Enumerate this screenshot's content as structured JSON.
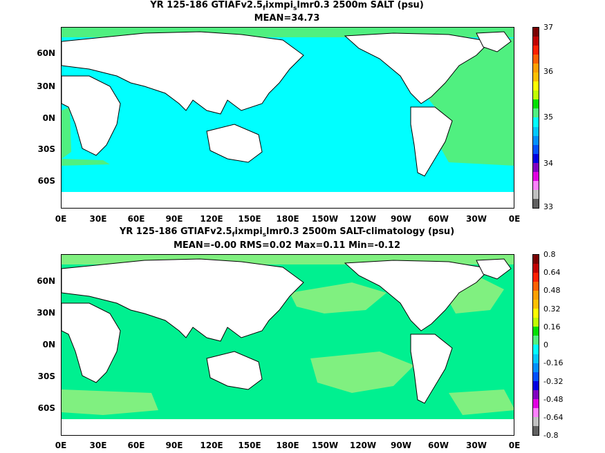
{
  "top": {
    "title_line1_pre": "YR 125-186 GTIAFv2.5",
    "title_sub1": "f",
    "title_mid": "ixmpi",
    "title_sub2": "s",
    "title_post": "lmr0.3 2500m SALT (psu)",
    "title_line2": "MEAN=34.73",
    "colorbar_labels": [
      "37",
      "36",
      "35",
      "34",
      "33"
    ],
    "colors": [
      "#7a0000",
      "#c00000",
      "#ff2000",
      "#ff6000",
      "#ffa000",
      "#ffc000",
      "#ffff00",
      "#c0ff00",
      "#00e000",
      "#50f080",
      "#00ffff",
      "#00c8ff",
      "#0090ff",
      "#0050ff",
      "#0000e0",
      "#8000c0",
      "#e000e0",
      "#ff80ff",
      "#c0c0c0",
      "#606060"
    ],
    "ocean_color": "#00ffff",
    "atlantic_color": "#50f080"
  },
  "bottom": {
    "title_line1_pre": "YR 125-186 GTIAFv2.5",
    "title_sub1": "f",
    "title_mid": "ixmpi",
    "title_sub2": "s",
    "title_post": "lmr0.3 2500m SALT-climatology (psu)",
    "title_line2": "MEAN=-0.00   RMS=0.02   Max=0.11   Min=-0.12",
    "colorbar_labels": [
      "0.8",
      "0.64",
      "0.48",
      "0.32",
      "0.16",
      "0",
      "-0.16",
      "-0.32",
      "-0.48",
      "-0.64",
      "-0.8"
    ],
    "colors": [
      "#7a0000",
      "#c00000",
      "#ff2000",
      "#ff6000",
      "#ffa000",
      "#ffc000",
      "#ffff00",
      "#c0ff00",
      "#00e000",
      "#50f080",
      "#00ffff",
      "#00c8ff",
      "#0090ff",
      "#0050ff",
      "#0000e0",
      "#8000c0",
      "#e000e0",
      "#ff80ff",
      "#c0c0c0",
      "#606060"
    ],
    "ocean_color": "#00f090",
    "patch_color": "#80f080"
  },
  "lat_labels": [
    "60N",
    "30N",
    "0N",
    "30S",
    "60S"
  ],
  "lon_labels": [
    "0E",
    "30E",
    "60E",
    "90E",
    "120E",
    "150E",
    "180E",
    "150W",
    "120W",
    "90W",
    "60W",
    "30W",
    "0E"
  ]
}
